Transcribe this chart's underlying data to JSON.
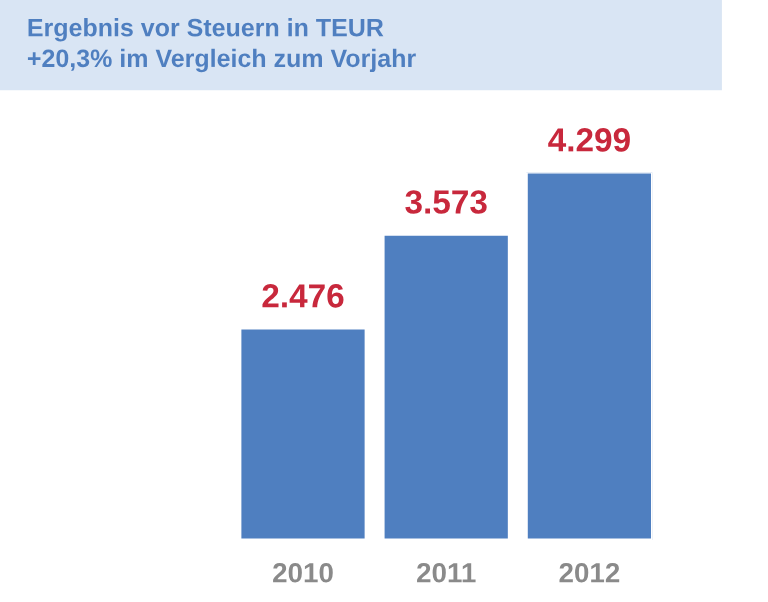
{
  "chart_data": {
    "type": "bar",
    "title": "Ergebnis vor Steuern in TEUR\n+20,3% im Vergleich zum Vorjahr",
    "categories": [
      "2010",
      "2011",
      "2012"
    ],
    "values": [
      2476,
      3573,
      4299
    ],
    "value_labels": [
      "2.476",
      "3.573",
      "4.299"
    ],
    "color": "#4f7fc0",
    "grid": false,
    "legend": false
  }
}
